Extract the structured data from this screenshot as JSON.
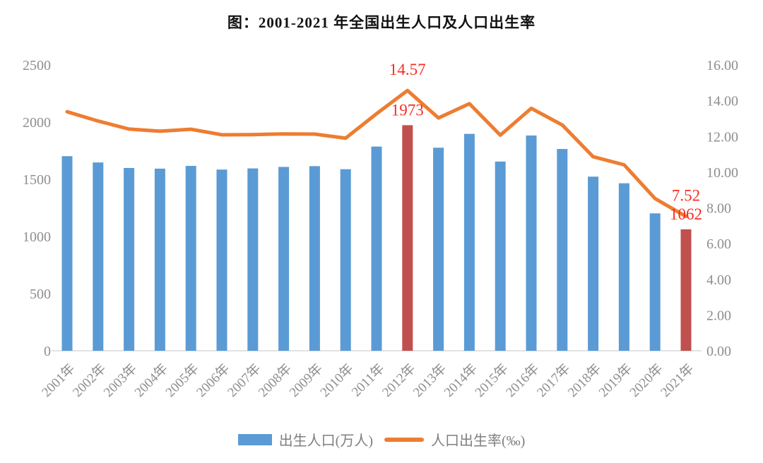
{
  "chart_data": {
    "type": "bar+line combo",
    "title": "图：2001-2021 年全国出生人口及人口出生率",
    "categories": [
      "2001年",
      "2002年",
      "2003年",
      "2004年",
      "2005年",
      "2006年",
      "2007年",
      "2008年",
      "2009年",
      "2010年",
      "2011年",
      "2012年",
      "2013年",
      "2014年",
      "2015年",
      "2016年",
      "2017年",
      "2018年",
      "2019年",
      "2020年",
      "2021年"
    ],
    "series": [
      {
        "name": "出生人口(万人)",
        "chart_type": "bar",
        "axis": "left",
        "color": "#5B9BD5",
        "highlight_color": "#C0504D",
        "highlight_indices": [
          11,
          20
        ],
        "values": [
          1702,
          1647,
          1599,
          1593,
          1617,
          1585,
          1595,
          1608,
          1615,
          1588,
          1786,
          1973,
          1776,
          1897,
          1655,
          1883,
          1765,
          1523,
          1465,
          1202,
          1062
        ]
      },
      {
        "name": "人口出生率(‰)",
        "chart_type": "line",
        "axis": "right",
        "color": "#ED7D31",
        "values": [
          13.38,
          12.86,
          12.41,
          12.29,
          12.4,
          12.09,
          12.1,
          12.14,
          12.13,
          11.9,
          13.27,
          14.57,
          13.03,
          13.83,
          12.07,
          13.57,
          12.64,
          10.86,
          10.41,
          8.52,
          7.52
        ]
      }
    ],
    "left_axis": {
      "min": 0,
      "max": 2500,
      "step": 500,
      "tick_labels": [
        "0",
        "500",
        "1000",
        "1500",
        "2000",
        "2500"
      ],
      "label_color": "#8E8E8E"
    },
    "right_axis": {
      "min": 0,
      "max": 16,
      "step": 2,
      "tick_labels": [
        "0.00",
        "2.00",
        "4.00",
        "6.00",
        "8.00",
        "10.00",
        "12.00",
        "14.00",
        "16.00"
      ],
      "label_color": "#8E8E8E"
    },
    "annotations": [
      {
        "text": "14.57",
        "category_index": 11,
        "attach": "line",
        "color": "#F72C22"
      },
      {
        "text": "1973",
        "category_index": 11,
        "attach": "bar",
        "color": "#F72C22"
      },
      {
        "text": "7.52",
        "category_index": 20,
        "attach": "line",
        "color": "#F72C22"
      },
      {
        "text": "1062",
        "category_index": 20,
        "attach": "bar",
        "color": "#F72C22"
      }
    ],
    "legend_position": "bottom",
    "grid": "off",
    "axis_line_color": "#D9D9D9"
  }
}
